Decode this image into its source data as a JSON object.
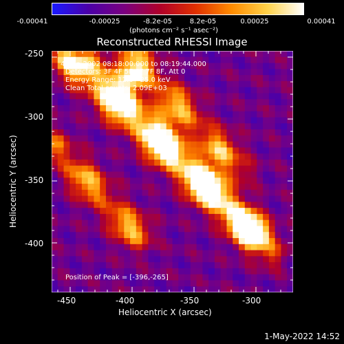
{
  "colorbar": {
    "ticks": [
      "-0.00041",
      "-0.00025",
      "-8.2e-05",
      "8.2e-05",
      "0.00025",
      "0.00041"
    ],
    "units": "(photons cm⁻² s⁻¹ asec⁻²)",
    "colors": [
      "#1a1aff",
      "#4b00a8",
      "#7a0080",
      "#b0002a",
      "#e03000",
      "#ff8c00",
      "#ffd24a",
      "#ffffff"
    ]
  },
  "chart_data": {
    "type": "heatmap",
    "title": "Reconstructed RHESSI Image",
    "xlabel": "Heliocentric X (arcsec)",
    "ylabel": "Heliocentric Y (arcsec)",
    "xlim": [
      -465,
      -270
    ],
    "ylim": [
      -440,
      -245
    ],
    "xticks": [
      "-450",
      "-400",
      "-350",
      "-300"
    ],
    "yticks": [
      "-250",
      "-300",
      "-350",
      "-400"
    ],
    "clim": [
      -0.00041,
      0.00041
    ],
    "annotations": [
      "4-Sep-2002 08:18:00.000 to 08:19:44.000",
      "Detectors: 3F 4F 5F 6F 7F 8F, Att 0",
      "Energy Range: 12.0 - 25.0 keV",
      "Clean     Total counts: 2.09E+03"
    ],
    "peak_label": "Position of Peak = [-396,-265]",
    "peak": [
      -396,
      -265
    ],
    "bright_ridges": [
      {
        "x": [
          -455,
          -300
        ],
        "y": [
          -250,
          -395
        ]
      },
      {
        "x": [
          -430,
          -290
        ],
        "y": [
          -255,
          -405
        ]
      },
      {
        "x": [
          -400,
          -315
        ],
        "y": [
          -250,
          -340
        ]
      },
      {
        "x": [
          -460,
          -395
        ],
        "y": [
          -325,
          -395
        ]
      }
    ]
  },
  "footer": {
    "timestamp": "1-May-2022 14:52"
  }
}
